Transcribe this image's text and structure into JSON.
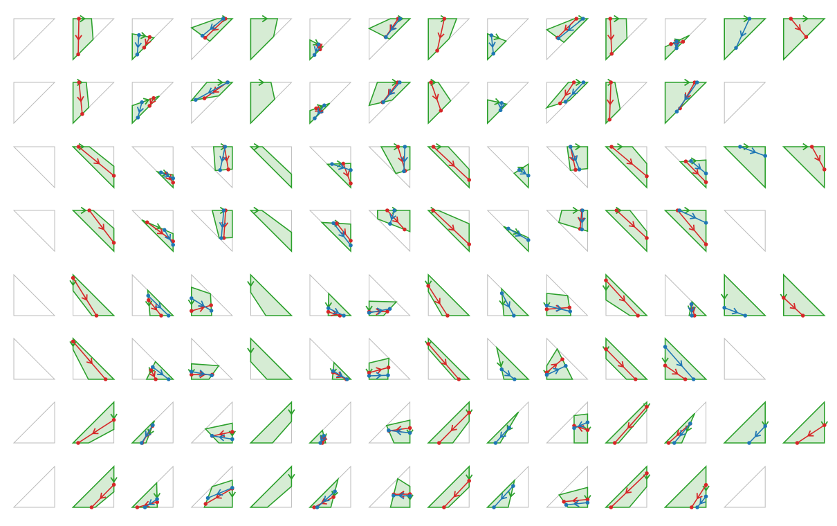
{
  "figure": {
    "colors": {
      "outline": "#bbbbbb",
      "region_fill": "#d6ecd4",
      "region_stroke": "#2ca02c",
      "red_curve": "#d62728",
      "blue_curve": "#1f77b4"
    },
    "tile_labels": [],
    "rows": [
      {
        "orientation": "upper-left-triangle",
        "tiles": 14
      },
      {
        "orientation": "upper-left-triangle",
        "tiles": 13
      },
      {
        "orientation": "upper-right-triangle",
        "tiles": 14
      },
      {
        "orientation": "upper-right-triangle",
        "tiles": 13
      },
      {
        "orientation": "lower-left-triangle",
        "tiles": 14
      },
      {
        "orientation": "lower-left-triangle",
        "tiles": 13
      },
      {
        "orientation": "lower-right-triangle",
        "tiles": 14
      },
      {
        "orientation": "lower-right-triangle",
        "tiles": 13
      }
    ]
  }
}
